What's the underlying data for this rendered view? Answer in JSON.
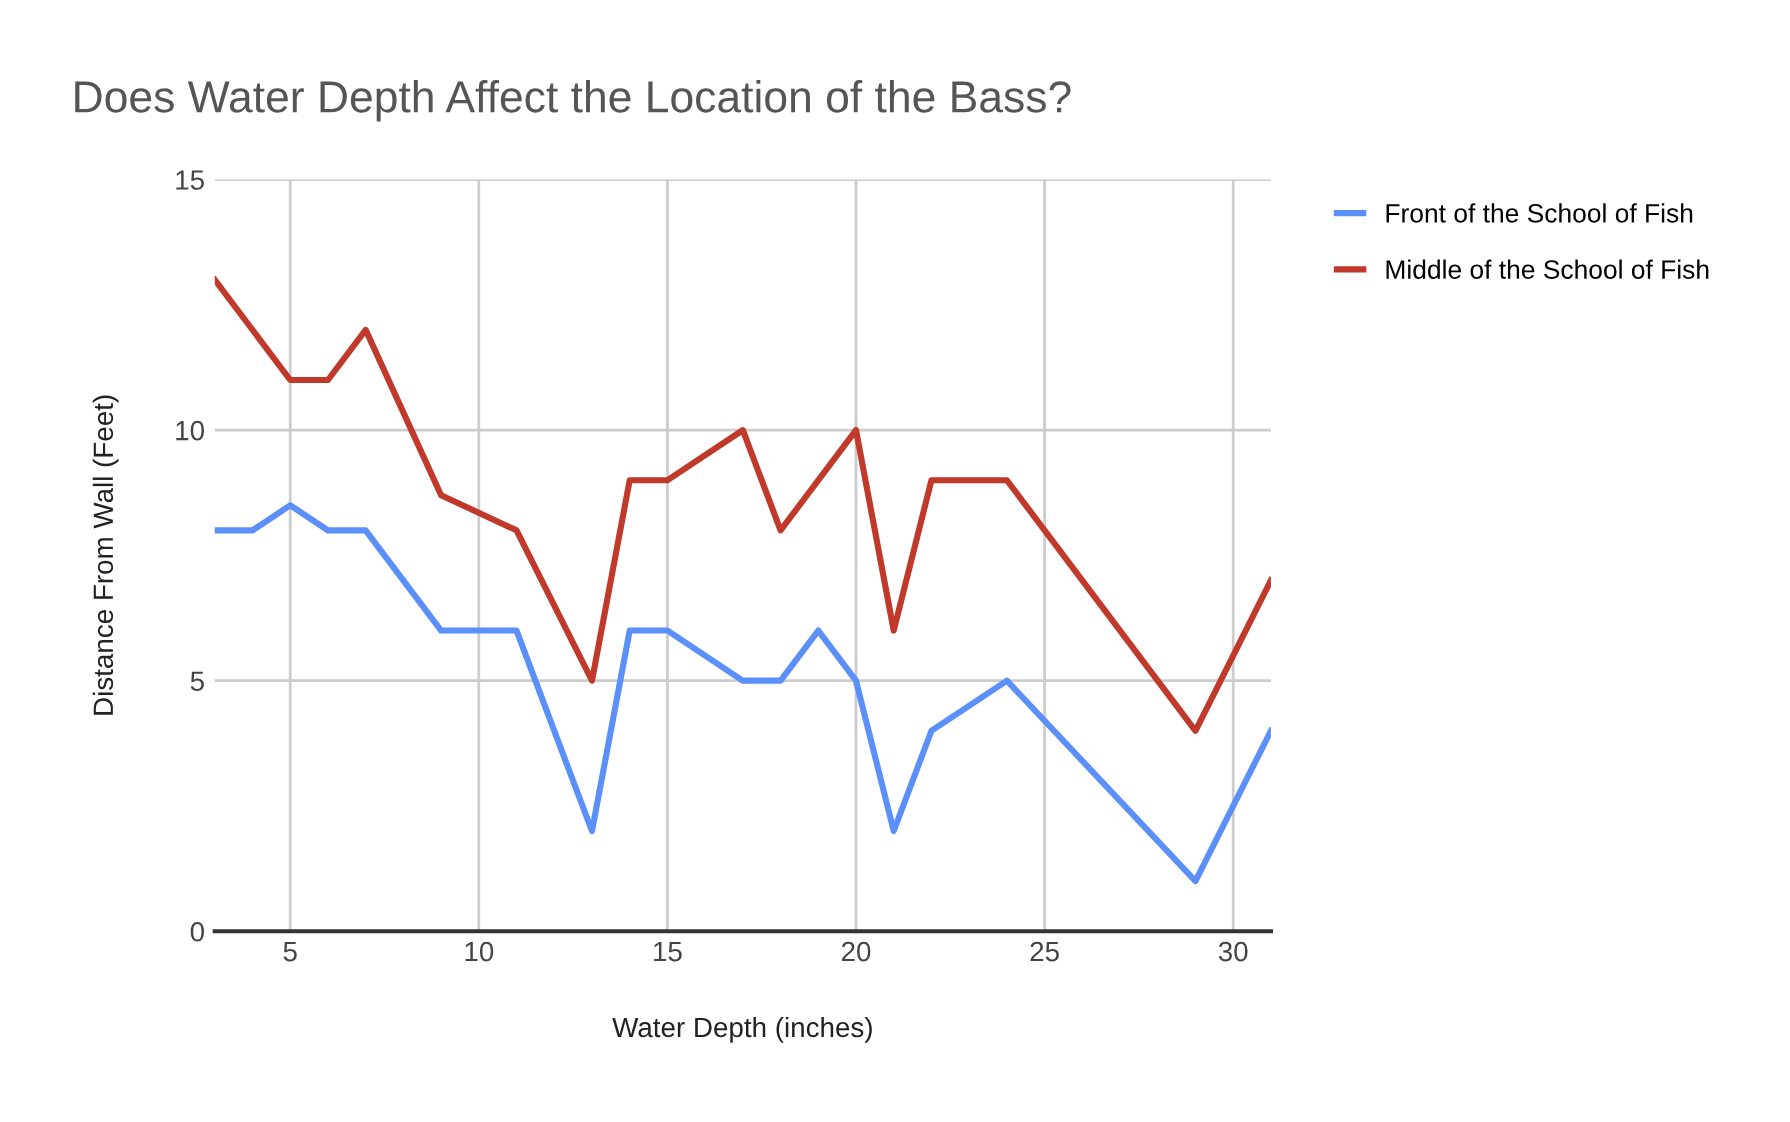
{
  "chart_data": {
    "type": "line",
    "title": "Does Water Depth Affect the Location of the Bass?",
    "xlabel": "Water Depth (inches)",
    "ylabel": "Distance From Wall (Feet)",
    "series": [
      {
        "name": "Front of the School of Fish",
        "color": "#5b8ff9",
        "x": [
          3,
          4,
          5,
          6,
          7,
          9,
          10,
          11,
          13,
          14,
          15,
          17,
          18,
          19,
          20,
          21,
          22,
          24,
          29,
          31
        ],
        "values": [
          8,
          8,
          8.5,
          8,
          8,
          6,
          6,
          6,
          2,
          6,
          6,
          5,
          5,
          6,
          5,
          2,
          4,
          5,
          1,
          4
        ]
      },
      {
        "name": "Middle of the School of Fish",
        "color": "#c0392b",
        "x": [
          3,
          5,
          6,
          7,
          9,
          11,
          13,
          14,
          15,
          17,
          18,
          20,
          21,
          22,
          24,
          29,
          31
        ],
        "values": [
          13,
          11,
          11,
          12,
          8.7,
          8,
          5,
          9,
          9,
          10,
          8,
          10,
          6,
          9,
          9,
          4,
          7
        ]
      }
    ],
    "xlim": [
      3,
      31
    ],
    "xticks": [
      5,
      10,
      15,
      20,
      25,
      30
    ],
    "ylim": [
      0,
      15
    ],
    "yticks": [
      0,
      5,
      10,
      15
    ],
    "grid": true,
    "legend": "top right",
    "marker": "none",
    "line_style": "solid"
  }
}
